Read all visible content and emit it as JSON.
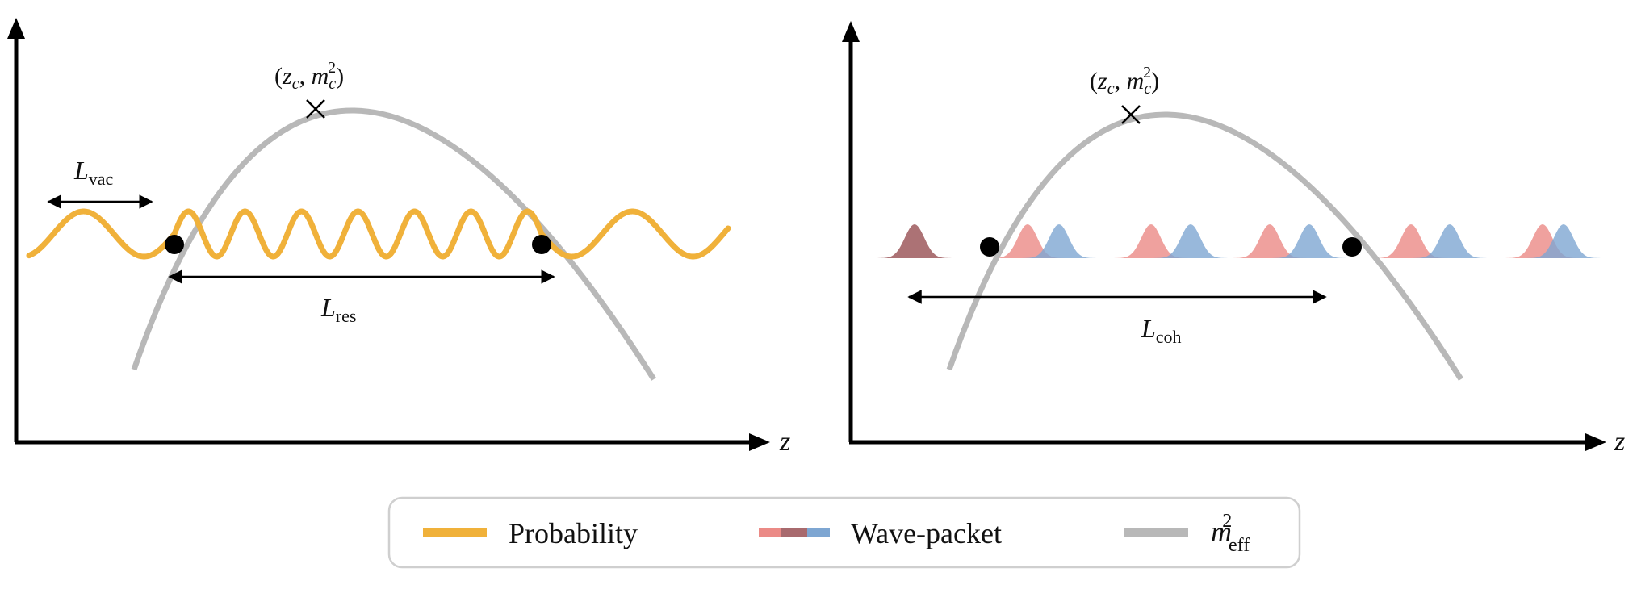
{
  "colors": {
    "axis": "#000000",
    "probability": "#f0b13a",
    "mass_curve": "#b8b8b8",
    "packet_red": "#eb8a86",
    "packet_blue": "#7ea6d2",
    "packet_overlap": "#a86a6e",
    "legend_border": "#cfcfcf"
  },
  "left_panel": {
    "axis_label": "z",
    "peak_label": "(z_c, m_c^2)",
    "vac_label": "L_vac",
    "res_label": "L_res"
  },
  "right_panel": {
    "axis_label": "z",
    "peak_label": "(z_c, m_c^2)",
    "coh_label": "L_coh"
  },
  "legend": {
    "probability": "Probability",
    "wave_packet": "Wave-packet",
    "m_eff": "m_eff^2"
  }
}
